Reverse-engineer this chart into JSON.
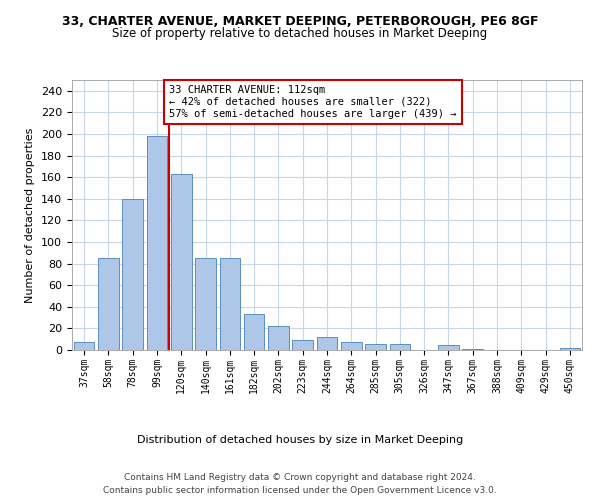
{
  "title_line1": "33, CHARTER AVENUE, MARKET DEEPING, PETERBOROUGH, PE6 8GF",
  "title_line2": "Size of property relative to detached houses in Market Deeping",
  "xlabel": "Distribution of detached houses by size in Market Deeping",
  "ylabel": "Number of detached properties",
  "categories": [
    "37sqm",
    "58sqm",
    "78sqm",
    "99sqm",
    "120sqm",
    "140sqm",
    "161sqm",
    "182sqm",
    "202sqm",
    "223sqm",
    "244sqm",
    "264sqm",
    "285sqm",
    "305sqm",
    "326sqm",
    "347sqm",
    "367sqm",
    "388sqm",
    "409sqm",
    "429sqm",
    "450sqm"
  ],
  "values": [
    7,
    85,
    140,
    198,
    163,
    85,
    85,
    33,
    22,
    9,
    12,
    7,
    6,
    6,
    0,
    5,
    1,
    0,
    0,
    0,
    2
  ],
  "bar_color": "#aec6e8",
  "bar_edge_color": "#5a8fc0",
  "property_line_label": "33 CHARTER AVENUE: 112sqm",
  "annotation_line2": "← 42% of detached houses are smaller (322)",
  "annotation_line3": "57% of semi-detached houses are larger (439) →",
  "vline_color": "#cc0000",
  "vline_x": 3.5,
  "ylim": [
    0,
    250
  ],
  "yticks": [
    0,
    20,
    40,
    60,
    80,
    100,
    120,
    140,
    160,
    180,
    200,
    220,
    240
  ],
  "footer_line1": "Contains HM Land Registry data © Crown copyright and database right 2024.",
  "footer_line2": "Contains public sector information licensed under the Open Government Licence v3.0.",
  "background_color": "#ffffff",
  "grid_color": "#c8d4e8"
}
